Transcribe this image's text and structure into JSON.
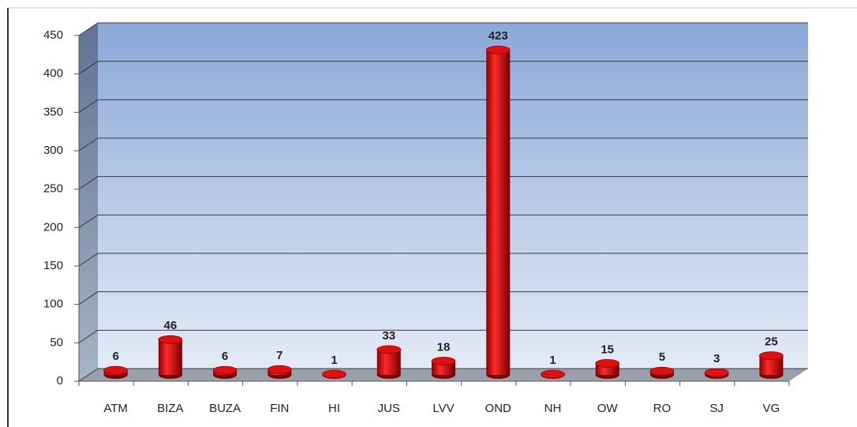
{
  "chart_data": {
    "type": "bar",
    "categories": [
      "ATM",
      "BIZA",
      "BUZA",
      "FIN",
      "HI",
      "JUS",
      "LVV",
      "OND",
      "NH",
      "OW",
      "RO",
      "SJ",
      "VG"
    ],
    "values": [
      6,
      46,
      6,
      7,
      1,
      33,
      18,
      423,
      1,
      15,
      5,
      3,
      25
    ],
    "color": "#cc0000",
    "ylim": [
      0,
      450
    ],
    "yticks": [
      0,
      50,
      100,
      150,
      200,
      250,
      300,
      350,
      400,
      450
    ],
    "grid": true
  }
}
